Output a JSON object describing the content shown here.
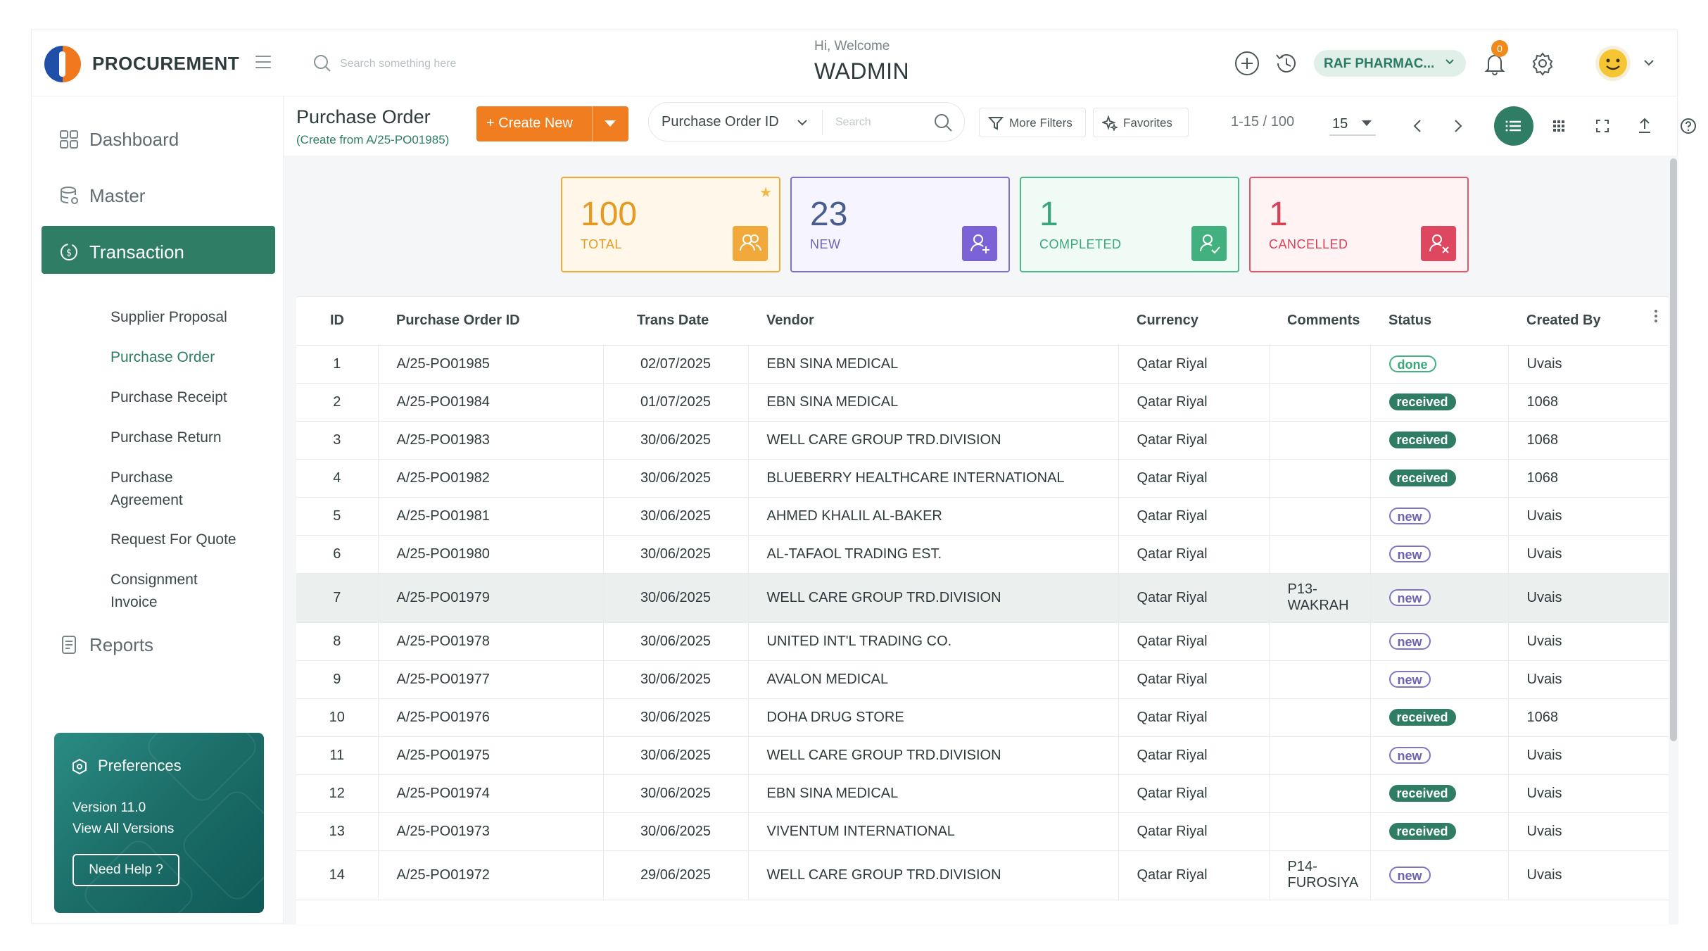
{
  "header": {
    "brand": "PROCUREMENT",
    "search_placeholder": "Search something here",
    "welcome_text": "Hi, Welcome",
    "user_name": "WADMIN",
    "company": "RAF PHARMAC...",
    "notification_count": "0"
  },
  "sidebar": {
    "items": [
      {
        "label": "Dashboard",
        "icon": "grid-icon"
      },
      {
        "label": "Master",
        "icon": "database-icon"
      },
      {
        "label": "Transaction",
        "icon": "currency-cycle-icon"
      },
      {
        "label": "Reports",
        "icon": "report-icon"
      }
    ],
    "sub_items": [
      "Supplier Proposal",
      "Purchase Order",
      "Purchase Receipt",
      "Purchase Return",
      "Purchase Agreement",
      "Request For Quote",
      "Consignment Invoice"
    ],
    "active_item": "Transaction",
    "active_sub_item": "Purchase Order",
    "preferences": {
      "title": "Preferences",
      "version": "Version 11.0",
      "view_all": "View All Versions",
      "help": "Need Help ?"
    }
  },
  "toolbar": {
    "title": "Purchase Order",
    "subtitle": "(Create from A/25-PO01985)",
    "create_label": "+ Create New",
    "filter_field": "Purchase Order ID",
    "filter_search_placeholder": "Search",
    "more_filters": "More Filters",
    "favorites": "Favorites",
    "pager_text": "1-15 / 100",
    "page_size": "15"
  },
  "kpis": [
    {
      "value": "100",
      "label": "TOTAL",
      "icon": "users-icon"
    },
    {
      "value": "23",
      "label": "NEW",
      "icon": "user-add-icon"
    },
    {
      "value": "1",
      "label": "COMPLETED",
      "icon": "user-check-icon"
    },
    {
      "value": "1",
      "label": "CANCELLED",
      "icon": "user-cancel-icon"
    }
  ],
  "colors": {
    "accent": "#2f7d65",
    "create_button": "#f07d1f",
    "total": "#f2a93b",
    "new": "#7b62d6",
    "completed": "#43b07f",
    "cancelled": "#de4760"
  },
  "table": {
    "columns": [
      "ID",
      "Purchase Order ID",
      "Trans Date",
      "Vendor",
      "Currency",
      "Comments",
      "Status",
      "Created By"
    ],
    "rows": [
      {
        "id": "1",
        "po": "A/25-PO01985",
        "date": "02/07/2025",
        "vendor": "EBN SINA MEDICAL",
        "currency": "Qatar Riyal",
        "comments": "",
        "status": "done",
        "created_by": "Uvais"
      },
      {
        "id": "2",
        "po": "A/25-PO01984",
        "date": "01/07/2025",
        "vendor": "EBN SINA MEDICAL",
        "currency": "Qatar Riyal",
        "comments": "",
        "status": "received",
        "created_by": "1068"
      },
      {
        "id": "3",
        "po": "A/25-PO01983",
        "date": "30/06/2025",
        "vendor": "WELL CARE GROUP TRD.DIVISION",
        "currency": "Qatar Riyal",
        "comments": "",
        "status": "received",
        "created_by": "1068"
      },
      {
        "id": "4",
        "po": "A/25-PO01982",
        "date": "30/06/2025",
        "vendor": "BLUEBERRY HEALTHCARE INTERNATIONAL",
        "currency": "Qatar Riyal",
        "comments": "",
        "status": "received",
        "created_by": "1068"
      },
      {
        "id": "5",
        "po": "A/25-PO01981",
        "date": "30/06/2025",
        "vendor": "AHMED KHALIL AL-BAKER",
        "currency": "Qatar Riyal",
        "comments": "",
        "status": "new",
        "created_by": "Uvais"
      },
      {
        "id": "6",
        "po": "A/25-PO01980",
        "date": "30/06/2025",
        "vendor": "AL-TAFAOL TRADING EST.",
        "currency": "Qatar Riyal",
        "comments": "",
        "status": "new",
        "created_by": "Uvais"
      },
      {
        "id": "7",
        "po": "A/25-PO01979",
        "date": "30/06/2025",
        "vendor": "WELL CARE GROUP TRD.DIVISION",
        "currency": "Qatar Riyal",
        "comments": "P13-WAKRAH",
        "status": "new",
        "created_by": "Uvais"
      },
      {
        "id": "8",
        "po": "A/25-PO01978",
        "date": "30/06/2025",
        "vendor": "UNITED INT'L TRADING CO.",
        "currency": "Qatar Riyal",
        "comments": "",
        "status": "new",
        "created_by": "Uvais"
      },
      {
        "id": "9",
        "po": "A/25-PO01977",
        "date": "30/06/2025",
        "vendor": "AVALON MEDICAL",
        "currency": "Qatar Riyal",
        "comments": "",
        "status": "new",
        "created_by": "Uvais"
      },
      {
        "id": "10",
        "po": "A/25-PO01976",
        "date": "30/06/2025",
        "vendor": "DOHA DRUG STORE",
        "currency": "Qatar Riyal",
        "comments": "",
        "status": "received",
        "created_by": "1068"
      },
      {
        "id": "11",
        "po": "A/25-PO01975",
        "date": "30/06/2025",
        "vendor": "WELL CARE GROUP TRD.DIVISION",
        "currency": "Qatar Riyal",
        "comments": "",
        "status": "new",
        "created_by": "Uvais"
      },
      {
        "id": "12",
        "po": "A/25-PO01974",
        "date": "30/06/2025",
        "vendor": "EBN SINA MEDICAL",
        "currency": "Qatar Riyal",
        "comments": "",
        "status": "received",
        "created_by": "Uvais"
      },
      {
        "id": "13",
        "po": "A/25-PO01973",
        "date": "30/06/2025",
        "vendor": "VIVENTUM INTERNATIONAL",
        "currency": "Qatar Riyal",
        "comments": "",
        "status": "received",
        "created_by": "Uvais"
      },
      {
        "id": "14",
        "po": "A/25-PO01972",
        "date": "29/06/2025",
        "vendor": "WELL CARE GROUP TRD.DIVISION",
        "currency": "Qatar Riyal",
        "comments": "P14-FUROSIYA",
        "status": "new",
        "created_by": "Uvais"
      }
    ],
    "highlighted_row": "7"
  }
}
